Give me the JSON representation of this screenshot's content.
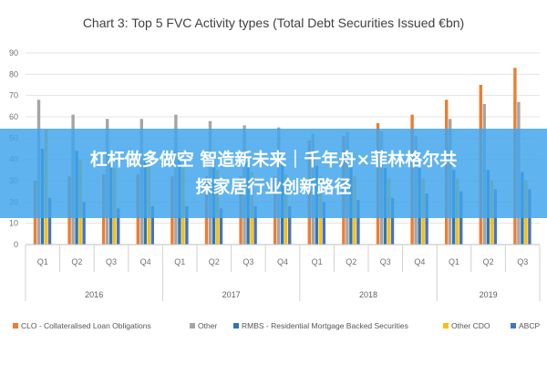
{
  "chart_data": {
    "type": "bar",
    "title": "Chart 3: Top 5 FVC Activity types (Total Debt Securities Issued €bn)",
    "categories": [
      "Q1",
      "Q2",
      "Q3",
      "Q4",
      "Q1",
      "Q2",
      "Q3",
      "Q4",
      "Q1",
      "Q2",
      "Q3",
      "Q4",
      "Q1",
      "Q2",
      "Q3"
    ],
    "years": [
      {
        "label": "2016",
        "span": 4
      },
      {
        "label": "2017",
        "span": 4
      },
      {
        "label": "2018",
        "span": 4
      },
      {
        "label": "2019",
        "span": 3
      }
    ],
    "series": [
      {
        "name": "CLO - Collateralised Loan Obligations",
        "color": "#ed7d31",
        "values": [
          30,
          32,
          33,
          33,
          32,
          32,
          32,
          32,
          49,
          51,
          57,
          61,
          68,
          75,
          83
        ]
      },
      {
        "name": "Other",
        "color": "#a5a5a5",
        "values": [
          68,
          61,
          59,
          59,
          61,
          58,
          56,
          55,
          52,
          53,
          53,
          51,
          59,
          66,
          67
        ]
      },
      {
        "name": "RMBS - Residential Mortgage Backed Securities",
        "color": "#2e75b6",
        "values": [
          45,
          44,
          42,
          41,
          41,
          40,
          39,
          38,
          37,
          37,
          36,
          36,
          35,
          35,
          34
        ]
      },
      {
        "name": "Other CDO",
        "color": "#ffc000",
        "values": [
          54,
          40,
          36,
          38,
          36,
          35,
          34,
          33,
          32,
          32,
          31,
          31,
          31,
          30,
          30
        ]
      },
      {
        "name": "ABCP",
        "color": "#4472c4",
        "values": [
          22,
          20,
          17,
          18,
          18,
          17,
          18,
          18,
          20,
          21,
          22,
          24,
          25,
          26,
          26
        ]
      }
    ],
    "ylim": [
      0,
      90
    ],
    "yticks": [
      0,
      10,
      20,
      30,
      40,
      50,
      60,
      70,
      80,
      90
    ],
    "grid": true,
    "legend": "bottom"
  },
  "overlay": {
    "line1": "杠杆做多做空 智造新未来｜千年舟×菲林格尔共",
    "line2": "探家居行业创新路径"
  }
}
